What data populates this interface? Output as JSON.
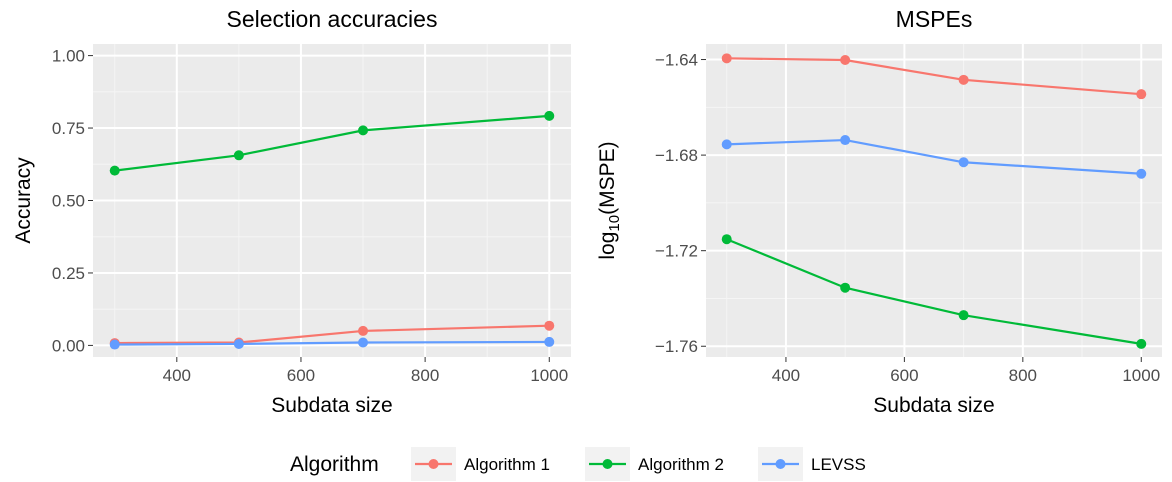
{
  "colors": {
    "Algorithm 1": "#F8766D",
    "Algorithm 2": "#00BA38",
    "LEVSS": "#619CFF",
    "panel_bg": "#EBEBEB",
    "grid_major": "#FFFFFF",
    "grid_minor": "#F5F5F5"
  },
  "legend": {
    "title": "Algorithm",
    "entries": [
      "Algorithm 1",
      "Algorithm 2",
      "LEVSS"
    ],
    "position": "bottom"
  },
  "chart_data": [
    {
      "type": "line",
      "title": "Selection accuracies",
      "xlabel": "Subdata size",
      "ylabel": "Accuracy",
      "x": [
        300,
        500,
        700,
        1000
      ],
      "xlim": [
        265,
        1035
      ],
      "ylim": [
        -0.04,
        1.04
      ],
      "xticks": [
        400,
        600,
        800,
        1000
      ],
      "xtick_labels": [
        "400",
        "600",
        "800",
        "1000"
      ],
      "yticks": [
        0,
        0.25,
        0.5,
        0.75,
        1.0
      ],
      "ytick_labels": [
        "0.00",
        "0.25",
        "0.50",
        "0.75",
        "1.00"
      ],
      "grid": true,
      "series": [
        {
          "name": "Algorithm 1",
          "values": [
            0.008,
            0.01,
            0.05,
            0.068
          ]
        },
        {
          "name": "Algorithm 2",
          "values": [
            0.603,
            0.656,
            0.742,
            0.792
          ]
        },
        {
          "name": "LEVSS",
          "values": [
            0.003,
            0.005,
            0.01,
            0.012
          ]
        }
      ]
    },
    {
      "type": "line",
      "title": "MSPEs",
      "xlabel": "Subdata size",
      "ylabel_main": "log",
      "ylabel_sub": "10",
      "ylabel_rest": "(MSPE)",
      "x": [
        300,
        500,
        700,
        1000
      ],
      "xlim": [
        265,
        1035
      ],
      "ylim": [
        -1.7645,
        -1.6335
      ],
      "xticks": [
        400,
        600,
        800,
        1000
      ],
      "xtick_labels": [
        "400",
        "600",
        "800",
        "1000"
      ],
      "yticks": [
        -1.76,
        -1.72,
        -1.68,
        -1.64
      ],
      "ytick_labels": [
        "−1.76",
        "−1.72",
        "−1.68",
        "−1.64"
      ],
      "grid": true,
      "series": [
        {
          "name": "Algorithm 1",
          "values": [
            -1.6395,
            -1.6402,
            -1.6485,
            -1.6545
          ]
        },
        {
          "name": "Algorithm 2",
          "values": [
            -1.7152,
            -1.7355,
            -1.747,
            -1.759
          ]
        },
        {
          "name": "LEVSS",
          "values": [
            -1.6755,
            -1.6737,
            -1.683,
            -1.6878
          ]
        }
      ]
    }
  ]
}
